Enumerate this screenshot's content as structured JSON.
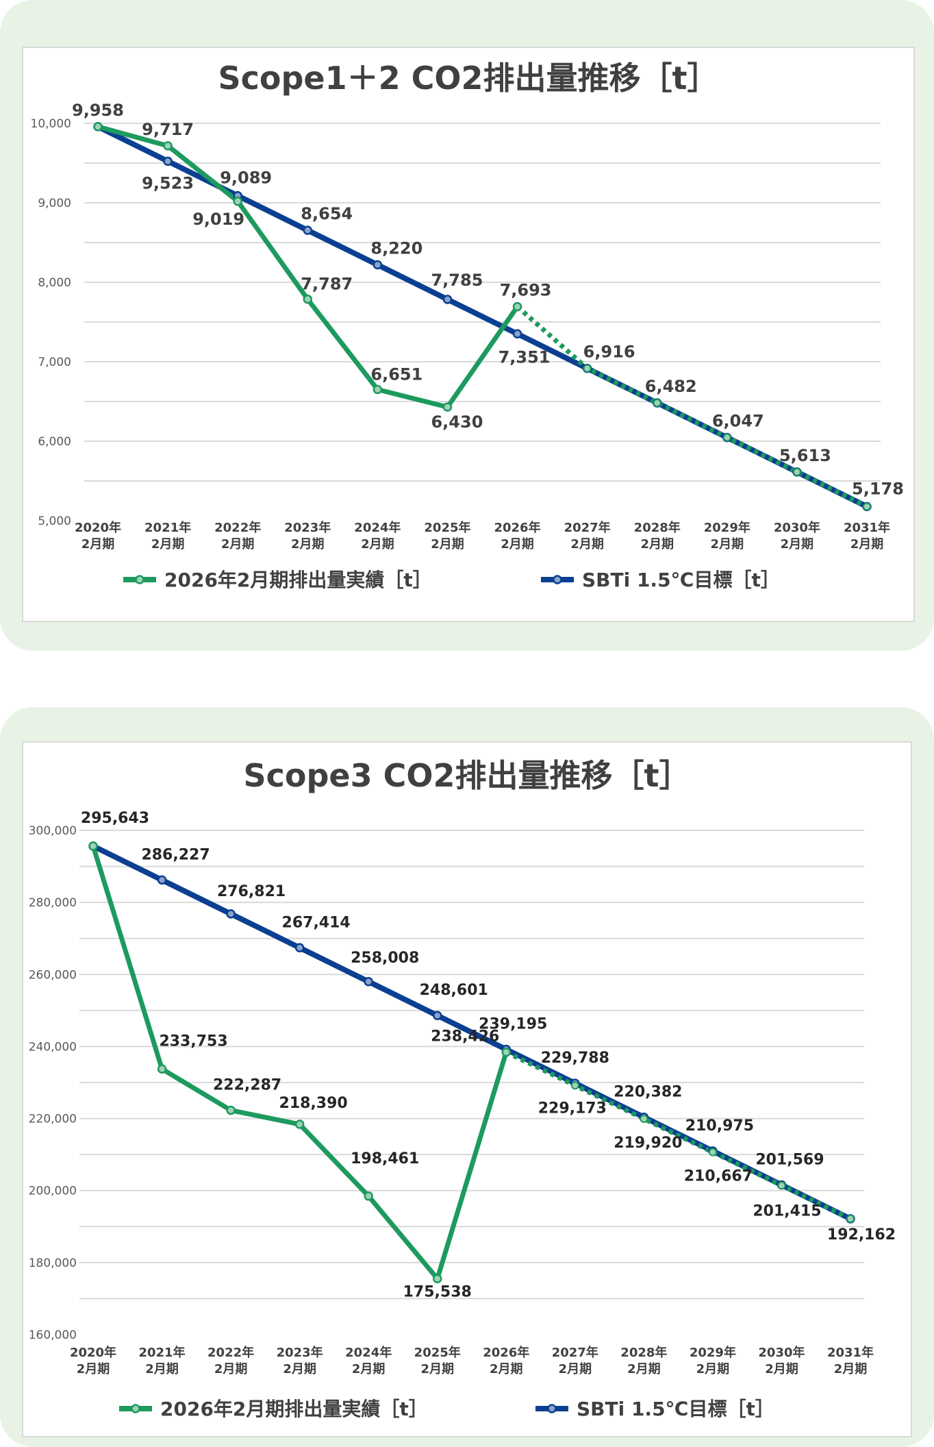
{
  "chart_data": [
    {
      "type": "line",
      "title": "Scope1＋2 CO2排出量推移［t］",
      "categories": [
        "2020年\n2月期",
        "2021年\n2月期",
        "2022年\n2月期",
        "2023年\n2月期",
        "2024年\n2月期",
        "2025年\n2月期",
        "2026年\n2月期",
        "2027年\n2月期",
        "2028年\n2月期",
        "2029年\n2月期",
        "2030年\n2月期",
        "2031年\n2月期"
      ],
      "ylim": [
        5000,
        10000
      ],
      "yticks": [
        5000,
        6000,
        7000,
        8000,
        9000,
        10000
      ],
      "ytick_labels": [
        "5,000",
        "6,000",
        "7,000",
        "8,000",
        "9,000",
        "10,000"
      ],
      "grid": true,
      "legend": "bottom",
      "series": [
        {
          "name": "2026年2月期排出量実績［t］",
          "color": "#1d9a5e",
          "values": [
            9958,
            9717,
            9019,
            7787,
            6651,
            6430,
            7693,
            null,
            null,
            null,
            null,
            null
          ],
          "labels": [
            "9,958",
            "9,717",
            "9,019",
            "7,787",
            "6,651",
            "6,430",
            "7,693",
            "",
            "",
            "",
            "",
            ""
          ],
          "projection": [
            null,
            null,
            null,
            null,
            null,
            null,
            7693,
            6916,
            6482,
            6047,
            5613,
            5178
          ]
        },
        {
          "name": "SBTi 1.5℃目標［t］",
          "color": "#0b3f91",
          "values": [
            9958,
            9523,
            9089,
            8654,
            8220,
            7785,
            7351,
            6916,
            6482,
            6047,
            5613,
            5178
          ],
          "labels": [
            "",
            "9,523",
            "9,089",
            "8,654",
            "8,220",
            "7,785",
            "7,351",
            "6,916",
            "6,482",
            "6,047",
            "5,613",
            "5,178"
          ]
        }
      ]
    },
    {
      "type": "line",
      "title": "Scope3 CO2排出量推移［t］",
      "categories": [
        "2020年\n2月期",
        "2021年\n2月期",
        "2022年\n2月期",
        "2023年\n2月期",
        "2024年\n2月期",
        "2025年\n2月期",
        "2026年\n2月期",
        "2027年\n2月期",
        "2028年\n2月期",
        "2029年\n2月期",
        "2030年\n2月期",
        "2031年\n2月期"
      ],
      "ylim": [
        160000,
        300000
      ],
      "yticks": [
        160000,
        180000,
        200000,
        220000,
        240000,
        260000,
        280000,
        300000
      ],
      "ytick_labels": [
        "160,000",
        "180,000",
        "200,000",
        "220,000",
        "240,000",
        "260,000",
        "280,000",
        "300,000"
      ],
      "grid": true,
      "legend": "bottom",
      "series": [
        {
          "name": "2026年2月期排出量実績［t］",
          "color": "#1d9a5e",
          "values": [
            295643,
            233753,
            222287,
            218390,
            198461,
            175538,
            238426,
            null,
            null,
            null,
            null,
            null
          ],
          "labels": [
            "",
            "233,753",
            "222,287",
            "218,390",
            "198,461",
            "175,538",
            "238,426",
            "",
            "",
            "",
            "",
            ""
          ],
          "projection": [
            null,
            null,
            null,
            null,
            null,
            null,
            238426,
            229173,
            219920,
            210667,
            201415,
            192162
          ],
          "projection_labels": [
            "",
            "",
            "",
            "",
            "",
            "",
            "",
            "229,173",
            "219,920",
            "210,667",
            "201,415",
            ""
          ]
        },
        {
          "name": "SBTi 1.5℃目標［t］",
          "color": "#0b3f91",
          "values": [
            295643,
            286227,
            276821,
            267414,
            258008,
            248601,
            239195,
            229788,
            220382,
            210975,
            201569,
            192162
          ],
          "labels": [
            "295,643",
            "286,227",
            "276,821",
            "267,414",
            "258,008",
            "248,601",
            "239,195",
            "229,788",
            "220,382",
            "210,975",
            "201,569",
            "192,162"
          ]
        }
      ]
    }
  ]
}
